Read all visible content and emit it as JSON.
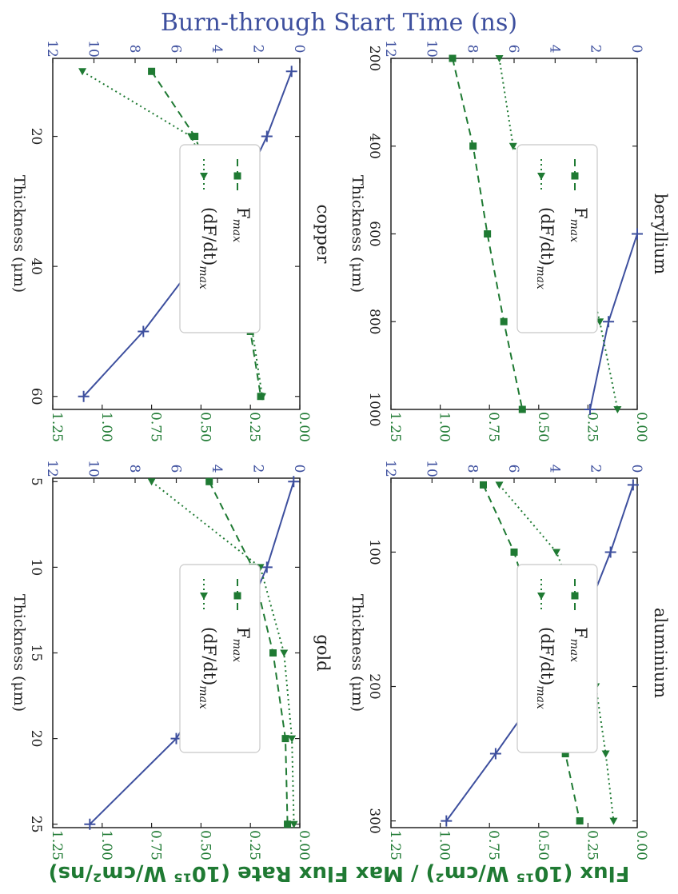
{
  "figure": {
    "top_title": "Burn-through Start Time (ns)",
    "bottom_title": "Flux (10¹⁵ W/cm²) / Max Flux Rate (10¹⁵ W/cm²/ns)",
    "colors": {
      "time": "#3d4f9e",
      "flux": "#1f7a33"
    },
    "legend": {
      "fmax": "F",
      "fmax_sub": "max",
      "rate": "(dF/dt)",
      "rate_sub": "max"
    },
    "xlabel": "Thickness (μm)"
  },
  "chart_data": [
    {
      "type": "line",
      "title": "beryllium",
      "xlabel": "Thickness (μm)",
      "x": [
        200,
        400,
        600,
        800,
        1000
      ],
      "xticks": [
        200,
        400,
        600,
        800,
        1000
      ],
      "xlim": [
        200,
        1000
      ],
      "left_axis": {
        "ylim": [
          0,
          12
        ],
        "ticks": [
          "0",
          "2",
          "4",
          "6",
          "8",
          "10",
          "12"
        ]
      },
      "right_axis": {
        "ylim": [
          0,
          1.25
        ],
        "ticks": [
          "0.00",
          "0.25",
          "0.50",
          "0.75",
          "1.00",
          "1.25"
        ]
      },
      "series": [
        {
          "name": "time",
          "axis": "left",
          "x": [
            600,
            800,
            1000
          ],
          "values": [
            0.0,
            1.4,
            2.3
          ]
        },
        {
          "name": "F_max",
          "axis": "left",
          "x": [
            200,
            400,
            600,
            800,
            1000
          ],
          "values": [
            9.0,
            8.0,
            7.3,
            6.5,
            5.6
          ]
        },
        {
          "name": "(dF/dt)_max",
          "axis": "right",
          "x": [
            200,
            400,
            600,
            800,
            1000
          ],
          "values": [
            0.7,
            0.63,
            0.3,
            0.19,
            0.1
          ]
        }
      ]
    },
    {
      "type": "line",
      "title": "aluminium",
      "xlabel": "Thickness (μm)",
      "x": [
        50,
        100,
        150,
        200,
        250,
        300
      ],
      "xticks": [
        100,
        200,
        300
      ],
      "xlim": [
        45,
        305
      ],
      "left_axis": {
        "ylim": [
          0,
          12
        ],
        "ticks": [
          "0",
          "2",
          "4",
          "6",
          "8",
          "10",
          "12"
        ]
      },
      "right_axis": {
        "ylim": [
          0,
          1.25
        ],
        "ticks": [
          "0.00",
          "0.25",
          "0.50",
          "0.75",
          "1.00",
          "1.25"
        ]
      },
      "series": [
        {
          "name": "time",
          "axis": "left",
          "x": [
            50,
            100,
            150,
            200,
            250,
            300
          ],
          "values": [
            0.2,
            1.3,
            2.6,
            4.6,
            6.9,
            9.3
          ]
        },
        {
          "name": "F_max",
          "axis": "left",
          "x": [
            50,
            100,
            150,
            200,
            250,
            300
          ],
          "values": [
            7.5,
            6.0,
            5.0,
            4.2,
            3.5,
            2.8
          ]
        },
        {
          "name": "(dF/dt)_max",
          "axis": "right",
          "x": [
            50,
            100,
            150,
            200,
            250,
            300
          ],
          "values": [
            0.7,
            0.41,
            0.28,
            0.21,
            0.16,
            0.12
          ]
        }
      ]
    },
    {
      "type": "line",
      "title": "copper",
      "xlabel": "Thickness (μm)",
      "x": [
        10,
        20,
        30,
        40,
        50,
        60
      ],
      "xticks": [
        20,
        40,
        60
      ],
      "xlim": [
        8,
        62
      ],
      "left_axis": {
        "ylim": [
          0,
          12
        ],
        "ticks": [
          "0",
          "2",
          "4",
          "6",
          "8",
          "10",
          "12"
        ]
      },
      "right_axis": {
        "ylim": [
          0,
          1.25
        ],
        "ticks": [
          "0.00",
          "0.25",
          "0.50",
          "0.75",
          "1.00",
          "1.25"
        ]
      },
      "series": [
        {
          "name": "time",
          "axis": "left",
          "x": [
            10,
            20,
            30,
            40,
            50,
            60
          ],
          "values": [
            0.4,
            1.6,
            3.1,
            5.2,
            7.6,
            10.5
          ]
        },
        {
          "name": "F_max",
          "axis": "left",
          "x": [
            10,
            20,
            30,
            40,
            50,
            60
          ],
          "values": [
            7.2,
            5.1,
            3.9,
            3.0,
            2.4,
            1.9
          ]
        },
        {
          "name": "(dF/dt)_max",
          "axis": "right",
          "x": [
            10,
            20,
            30,
            40,
            50,
            60
          ],
          "values": [
            1.1,
            0.55,
            0.4,
            0.31,
            0.24,
            0.19
          ]
        }
      ]
    },
    {
      "type": "line",
      "title": "gold",
      "xlabel": "Thickness (μm)",
      "x": [
        5,
        10,
        15,
        20,
        25
      ],
      "xticks": [
        5,
        10,
        15,
        20,
        25
      ],
      "xlim": [
        4.8,
        25.2
      ],
      "left_axis": {
        "ylim": [
          0,
          12
        ],
        "ticks": [
          "0",
          "2",
          "4",
          "6",
          "8",
          "10",
          "12"
        ]
      },
      "right_axis": {
        "ylim": [
          0,
          1.25
        ],
        "ticks": [
          "0.00",
          "0.25",
          "0.50",
          "0.75",
          "1.00",
          "1.25"
        ]
      },
      "series": [
        {
          "name": "time",
          "axis": "left",
          "x": [
            5,
            10,
            15,
            20,
            25
          ],
          "values": [
            0.3,
            1.6,
            3.4,
            6.0,
            10.2
          ]
        },
        {
          "name": "F_max",
          "axis": "left",
          "x": [
            5,
            10,
            15,
            20,
            25
          ],
          "values": [
            4.4,
            2.3,
            1.3,
            0.7,
            0.6
          ]
        },
        {
          "name": "(dF/dt)_max",
          "axis": "right",
          "x": [
            5,
            10,
            15,
            20,
            25
          ],
          "values": [
            0.75,
            0.2,
            0.08,
            0.04,
            0.03
          ]
        }
      ]
    }
  ]
}
